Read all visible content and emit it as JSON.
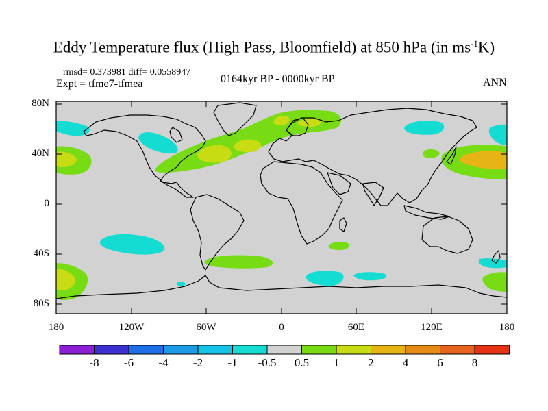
{
  "title": {
    "main": "Eddy Temperature flux (High Pass, Bloomfield) at 850 hPa (in ms",
    "sup": "-1",
    "tail": "K)"
  },
  "stats": "rmsd= 0.373981 diff= 0.0558947",
  "expt": "Expt = tfme7-tfmea",
  "period": "0164kyr BP - 0000kyr BP",
  "season": "ANN",
  "lat_ticks": [
    "80N",
    "40N",
    "0",
    "40S",
    "80S"
  ],
  "lon_ticks": [
    "180",
    "120W",
    "60W",
    "0",
    "60E",
    "120E",
    "180"
  ],
  "colorbar": {
    "labels": [
      "-8",
      "-6",
      "-4",
      "-2",
      "-1",
      "-0.5",
      "0.5",
      "1",
      "2",
      "4",
      "6",
      "8"
    ],
    "colors": [
      "#8c1ed6",
      "#3c32d2",
      "#1e6ee6",
      "#1e9be6",
      "#14c3e6",
      "#14dcd2",
      "#d2d2d2",
      "#78dc14",
      "#c8dc14",
      "#e6b414",
      "#e68c14",
      "#e6641e",
      "#e63214"
    ]
  },
  "map": {
    "background": "#d2d2d2",
    "regions": [
      {
        "name": "n-atlantic-storm-track",
        "level": "0.5 to 1",
        "color": "#78dc14"
      },
      {
        "name": "n-atlantic-core",
        "level": "1 to 2",
        "color": "#c8dc14"
      },
      {
        "name": "n-pacific-storm-track",
        "level": "0.5 to 1",
        "color": "#78dc14"
      },
      {
        "name": "n-pacific-core",
        "level": "2 to 4",
        "color": "#e6b414"
      },
      {
        "name": "n-pacific-east-core",
        "level": "1 to 2",
        "color": "#c8dc14"
      },
      {
        "name": "siberia-negative",
        "level": "-1 to -0.5",
        "color": "#14dcd2"
      },
      {
        "name": "ne-pacific-negative",
        "level": "-1 to -0.5",
        "color": "#14dcd2"
      },
      {
        "name": "s-pacific-negative",
        "level": "-1 to -0.5",
        "color": "#14dcd2"
      },
      {
        "name": "southern-ocean-positive",
        "level": "0.5 to 1",
        "color": "#78dc14"
      },
      {
        "name": "southern-ocean-negative",
        "level": "-1 to -0.5",
        "color": "#14dcd2"
      }
    ]
  }
}
